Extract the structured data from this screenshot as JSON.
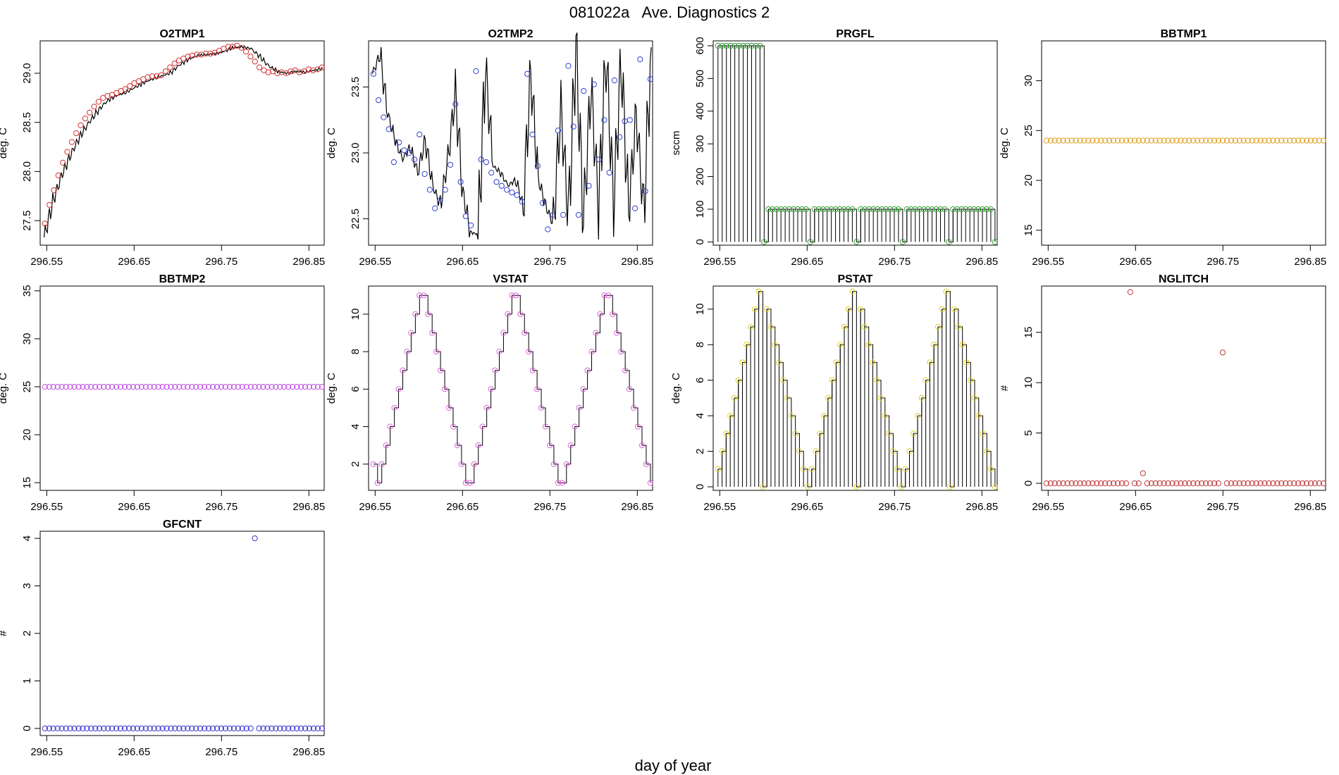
{
  "page": {
    "title": "081022a   Ave. Diagnostics 2",
    "xlabel": "day of year"
  },
  "chart_data": [
    {
      "name": "O2TMP1",
      "title": "O2TMP1",
      "type": "line",
      "ylabel": "deg. C",
      "xlim": [
        296.5425,
        296.8675
      ],
      "ylim": [
        27.25,
        29.33
      ],
      "xticks": [
        "296.55",
        "296.65",
        "296.75",
        "296.85"
      ],
      "yticks": [
        "27.5",
        "28.0",
        "28.5",
        "29.0"
      ],
      "marker_color": "#d03030",
      "line": {
        "shape": "curve",
        "x0": 296.547,
        "x1": 296.866,
        "y": [
          27.33,
          27.7,
          27.97,
          28.18,
          28.36,
          28.5,
          28.62,
          28.72,
          28.77,
          28.8,
          28.85,
          28.9,
          28.94,
          28.97,
          29.0,
          29.08,
          29.14,
          29.18,
          29.19,
          29.2,
          29.22,
          29.26,
          29.27,
          29.25,
          29.17,
          29.07,
          29.02,
          29.0,
          29.02,
          29.01,
          29.03,
          29.05
        ]
      },
      "markers": {
        "x0": 296.548,
        "x1": 296.865,
        "y": [
          27.47,
          27.66,
          27.81,
          27.96,
          28.09,
          28.2,
          28.3,
          28.39,
          28.47,
          28.54,
          28.6,
          28.66,
          28.71,
          28.75,
          28.77,
          28.78,
          28.8,
          28.82,
          28.84,
          28.87,
          28.9,
          28.92,
          28.94,
          28.96,
          28.97,
          28.97,
          28.98,
          29.02,
          29.06,
          29.1,
          29.13,
          29.15,
          29.17,
          29.18,
          29.19,
          29.19,
          29.2,
          29.2,
          29.21,
          29.23,
          29.25,
          29.27,
          29.27,
          29.28,
          29.26,
          29.22,
          29.17,
          29.12,
          29.06,
          29.03,
          29.01,
          29.02,
          29.0,
          29.01,
          29.0,
          29.02,
          29.03,
          29.01,
          29.02,
          29.04,
          29.03,
          29.04,
          29.06
        ]
      }
    },
    {
      "name": "O2TMP2",
      "title": "O2TMP2",
      "type": "line",
      "ylabel": "deg. C",
      "xlim": [
        296.5425,
        296.8675
      ],
      "ylim": [
        22.3,
        23.85
      ],
      "xticks": [
        "296.55",
        "296.65",
        "296.75",
        "296.85"
      ],
      "yticks": [
        "22.5",
        "23.0",
        "23.5"
      ],
      "marker_color": "#3040d0",
      "line": {
        "shape": "curve",
        "x0": 296.547,
        "x1": 296.866,
        "y": [
          23.6,
          23.75,
          23.3,
          23.1,
          22.95,
          23.05,
          22.85,
          23.1,
          22.75,
          22.6,
          22.95,
          23.45,
          22.7,
          22.4,
          22.38,
          23.65,
          22.9,
          22.85,
          22.75,
          22.8,
          22.6,
          23.6,
          22.8,
          22.6,
          22.45,
          23.35,
          22.5,
          23.8,
          22.5,
          23.5,
          22.6,
          23.75,
          22.6,
          23.7,
          22.55,
          23.3,
          22.55,
          23.8
        ]
      },
      "markers": {
        "x0": 296.548,
        "x1": 296.865,
        "y": [
          23.6,
          23.4,
          23.27,
          23.18,
          22.93,
          23.08,
          23.02,
          23.0,
          22.95,
          23.14,
          22.84,
          22.72,
          22.58,
          22.64,
          22.72,
          22.91,
          23.37,
          22.78,
          22.52,
          22.45,
          23.62,
          22.95,
          22.93,
          22.85,
          22.78,
          22.75,
          22.72,
          22.7,
          22.68,
          22.63,
          23.6,
          23.14,
          22.9,
          22.62,
          22.42,
          22.53,
          23.17,
          22.53,
          23.66,
          23.2,
          22.53,
          23.47,
          22.75,
          23.52,
          22.95,
          23.25,
          22.85,
          23.55,
          23.12,
          23.24,
          23.25,
          22.58,
          23.71,
          22.71,
          23.56
        ]
      }
    },
    {
      "name": "PRGFL",
      "title": "PRGFL",
      "type": "stem",
      "ylabel": "sccm",
      "xlim": [
        296.5425,
        296.8675
      ],
      "ylim": [
        -10,
        615
      ],
      "xticks": [
        "296.55",
        "296.65",
        "296.75",
        "296.85"
      ],
      "yticks": [
        "0",
        "100",
        "200",
        "300",
        "400",
        "500",
        "600"
      ],
      "marker_color": "#30a030",
      "markers": {
        "x0": 296.548,
        "x1": 296.865,
        "y": [
          600,
          600,
          600,
          600,
          600,
          600,
          600,
          600,
          600,
          600,
          600,
          0,
          100,
          100,
          100,
          100,
          100,
          100,
          100,
          100,
          100,
          100,
          0,
          100,
          100,
          100,
          100,
          100,
          100,
          100,
          100,
          100,
          100,
          0,
          100,
          100,
          100,
          100,
          100,
          100,
          100,
          100,
          100,
          100,
          0,
          100,
          100,
          100,
          100,
          100,
          100,
          100,
          100,
          100,
          100,
          0,
          100,
          100,
          100,
          100,
          100,
          100,
          100,
          100,
          100,
          100,
          0
        ]
      }
    },
    {
      "name": "BBTMP1",
      "title": "BBTMP1",
      "type": "scatter",
      "ylabel": "deg. C",
      "xlim": [
        296.5425,
        296.8675
      ],
      "ylim": [
        13.5,
        34
      ],
      "xticks": [
        "296.55",
        "296.65",
        "296.75",
        "296.85"
      ],
      "yticks": [
        "15",
        "20",
        "25",
        "30"
      ],
      "marker_color": "#e0a020",
      "markers": {
        "x0": 296.548,
        "x1": 296.865,
        "constant": 24,
        "count": 67
      }
    },
    {
      "name": "BBTMP2",
      "title": "BBTMP2",
      "type": "scatter",
      "ylabel": "deg. C",
      "xlim": [
        296.5425,
        296.8675
      ],
      "ylim": [
        14.2,
        35.5
      ],
      "xticks": [
        "296.55",
        "296.65",
        "296.75",
        "296.85"
      ],
      "yticks": [
        "15",
        "20",
        "25",
        "30",
        "35"
      ],
      "marker_color": "#c050e0",
      "markers": {
        "x0": 296.548,
        "x1": 296.865,
        "constant": 25,
        "count": 67
      }
    },
    {
      "name": "VSTAT",
      "title": "VSTAT",
      "type": "step",
      "ylabel": "deg. C",
      "xlim": [
        296.5425,
        296.8675
      ],
      "ylim": [
        0.6,
        11.5
      ],
      "xticks": [
        "296.55",
        "296.65",
        "296.75",
        "296.85"
      ],
      "yticks": [
        "2",
        "4",
        "6",
        "8",
        "10"
      ],
      "marker_color": "#e060e0",
      "markers": {
        "x0": 296.548,
        "x1": 296.865,
        "y": [
          2,
          1,
          2,
          3,
          4,
          5,
          6,
          7,
          8,
          9,
          10,
          11,
          11,
          10,
          9,
          8,
          7,
          6,
          5,
          4,
          3,
          2,
          1,
          1,
          2,
          3,
          4,
          5,
          6,
          7,
          8,
          9,
          10,
          11,
          11,
          10,
          9,
          8,
          7,
          6,
          5,
          4,
          3,
          2,
          1,
          1,
          2,
          3,
          4,
          5,
          6,
          7,
          8,
          9,
          10,
          11,
          11,
          10,
          9,
          8,
          7,
          6,
          5,
          4,
          3,
          2,
          1
        ]
      }
    },
    {
      "name": "PSTAT",
      "title": "PSTAT",
      "type": "stem",
      "ylabel": "deg. C",
      "xlim": [
        296.5425,
        296.8675
      ],
      "ylim": [
        -0.2,
        11.3
      ],
      "xticks": [
        "296.55",
        "296.65",
        "296.75",
        "296.85"
      ],
      "yticks": [
        "0",
        "2",
        "4",
        "6",
        "8",
        "10"
      ],
      "marker_color": "#e0d020",
      "markers": {
        "x0": 296.548,
        "x1": 296.865,
        "y": [
          1,
          2,
          3,
          4,
          5,
          6,
          7,
          8,
          9,
          10,
          11,
          0,
          10,
          9,
          8,
          7,
          6,
          5,
          4,
          3,
          2,
          1,
          0,
          1,
          2,
          3,
          4,
          5,
          6,
          7,
          8,
          9,
          10,
          11,
          0,
          10,
          9,
          8,
          7,
          6,
          5,
          4,
          3,
          2,
          1,
          0,
          1,
          2,
          3,
          4,
          5,
          6,
          7,
          8,
          9,
          10,
          11,
          0,
          10,
          9,
          8,
          7,
          6,
          5,
          4,
          3,
          2,
          1,
          0
        ]
      }
    },
    {
      "name": "NGLITCH",
      "title": "NGLITCH",
      "type": "scatter",
      "ylabel": "#",
      "xlim": [
        296.5425,
        296.8675
      ],
      "ylim": [
        -0.7,
        19.6
      ],
      "xticks": [
        "296.55",
        "296.65",
        "296.75",
        "296.85"
      ],
      "yticks": [
        "0",
        "5",
        "10",
        "15"
      ],
      "marker_color": "#c03838",
      "markers": {
        "x0": 296.548,
        "x1": 296.865,
        "y": [
          0,
          0,
          0,
          0,
          0,
          0,
          0,
          0,
          0,
          0,
          0,
          0,
          0,
          0,
          0,
          0,
          0,
          0,
          0,
          0,
          19,
          0,
          0,
          1,
          0,
          0,
          0,
          0,
          0,
          0,
          0,
          0,
          0,
          0,
          0,
          0,
          0,
          0,
          0,
          0,
          0,
          0,
          13,
          0,
          0,
          0,
          0,
          0,
          0,
          0,
          0,
          0,
          0,
          0,
          0,
          0,
          0,
          0,
          0,
          0,
          0,
          0,
          0,
          0,
          0,
          0,
          0
        ]
      }
    },
    {
      "name": "GFCNT",
      "title": "GFCNT",
      "type": "scatter",
      "ylabel": "#",
      "xlim": [
        296.5425,
        296.8675
      ],
      "ylim": [
        -0.15,
        4.15
      ],
      "xticks": [
        "296.55",
        "296.65",
        "296.75",
        "296.85"
      ],
      "yticks": [
        "0",
        "1",
        "2",
        "3",
        "4"
      ],
      "marker_color": "#3838d0",
      "markers": {
        "x0": 296.548,
        "x1": 296.865,
        "y": [
          0,
          0,
          0,
          0,
          0,
          0,
          0,
          0,
          0,
          0,
          0,
          0,
          0,
          0,
          0,
          0,
          0,
          0,
          0,
          0,
          0,
          0,
          0,
          0,
          0,
          0,
          0,
          0,
          0,
          0,
          0,
          0,
          0,
          0,
          0,
          0,
          0,
          0,
          0,
          0,
          0,
          0,
          0,
          0,
          0,
          0,
          0,
          0,
          0,
          0,
          4,
          0,
          0,
          0,
          0,
          0,
          0,
          0,
          0,
          0,
          0,
          0,
          0,
          0,
          0,
          0,
          0
        ]
      }
    }
  ]
}
